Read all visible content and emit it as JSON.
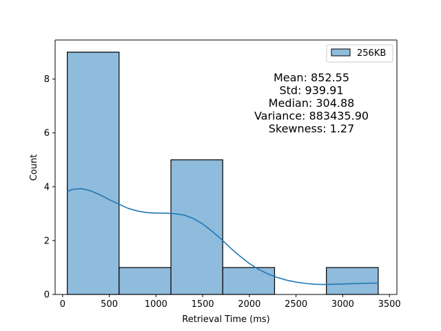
{
  "chart_data": {
    "type": "bar",
    "subtype": "histogram-with-kde",
    "xlabel": "Retrieval Time (ms)",
    "ylabel": "Count",
    "xlim": [
      -80,
      3580
    ],
    "ylim": [
      0,
      9.45
    ],
    "xticks": [
      0,
      500,
      1000,
      1500,
      2000,
      2500,
      3000,
      3500
    ],
    "xtick_labels": [
      "0",
      "500",
      "1000",
      "1500",
      "2000",
      "2500",
      "3000",
      "3500"
    ],
    "yticks": [
      0,
      2,
      4,
      6,
      8
    ],
    "ytick_labels": [
      "0",
      "2",
      "4",
      "6",
      "8"
    ],
    "grid": false,
    "legend_position": "top-right",
    "series": [
      {
        "name": "256KB",
        "color": "#1f77b4",
        "bar_fill": "#8fbbdc",
        "bins": [
          {
            "x0": 50,
            "x1": 605,
            "count": 9
          },
          {
            "x0": 605,
            "x1": 1160,
            "count": 1
          },
          {
            "x0": 1160,
            "x1": 1715,
            "count": 5
          },
          {
            "x0": 1715,
            "x1": 2270,
            "count": 1
          },
          {
            "x0": 2270,
            "x1": 2825,
            "count": 0
          },
          {
            "x0": 2825,
            "x1": 3380,
            "count": 1
          }
        ],
        "kde": {
          "x": [
            50,
            100,
            200,
            300,
            400,
            500,
            600,
            700,
            800,
            900,
            1000,
            1100,
            1200,
            1300,
            1400,
            1500,
            1600,
            1700,
            1800,
            1900,
            2000,
            2100,
            2200,
            2300,
            2400,
            2500,
            2600,
            2700,
            2800,
            2900,
            3000,
            3100,
            3200,
            3300,
            3380
          ],
          "y": [
            3.82,
            3.9,
            3.93,
            3.85,
            3.7,
            3.52,
            3.36,
            3.2,
            3.1,
            3.04,
            3.02,
            3.02,
            3.0,
            2.95,
            2.82,
            2.62,
            2.35,
            2.05,
            1.72,
            1.42,
            1.15,
            0.93,
            0.76,
            0.63,
            0.53,
            0.46,
            0.41,
            0.38,
            0.37,
            0.38,
            0.39,
            0.4,
            0.41,
            0.42,
            0.42
          ]
        }
      }
    ],
    "annotations": [
      "Mean: 852.55",
      "Std: 939.91",
      "Median: 304.88",
      "Variance: 883435.90",
      "Skewness: 1.27"
    ]
  }
}
